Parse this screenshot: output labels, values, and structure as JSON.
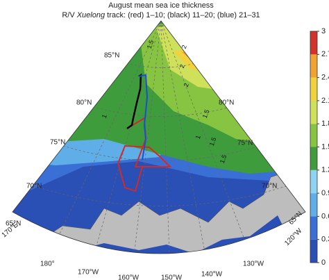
{
  "title": "August mean sea ice thickness",
  "subtitle": {
    "prefix": "R/V ",
    "ship": "Xuelong",
    "rest": " track: (red) 1–10; (black) 11–20; (blue) 21–31"
  },
  "colorbar": {
    "lim": [
      0,
      3
    ],
    "ticks": [
      0,
      0.3,
      0.6,
      0.9,
      1.2,
      1.5,
      1.8,
      2.1,
      2.4,
      2.7,
      3
    ],
    "colors": [
      "#2a4fb5",
      "#3a6fd6",
      "#5faee8",
      "#8fd3f2",
      "#3f9c3c",
      "#86c441",
      "#cfe05a",
      "#f0d23e",
      "#f0a232",
      "#d2332a"
    ]
  },
  "latitude_labels_left": [
    "85°N",
    "80°N",
    "75°N",
    "70°N",
    "65°N"
  ],
  "latitude_labels_right": [
    "80°N",
    "75°N",
    "70°N",
    "65°N"
  ],
  "longitude_labels": [
    "170°E",
    "180°",
    "170°W",
    "160°W",
    "150°W",
    "140°W",
    "130°W",
    "120°W"
  ],
  "contour_labels": [
    "1.5",
    "2",
    "2",
    "2",
    "1.5",
    "1",
    "1",
    "1.5",
    "1.5"
  ]
}
